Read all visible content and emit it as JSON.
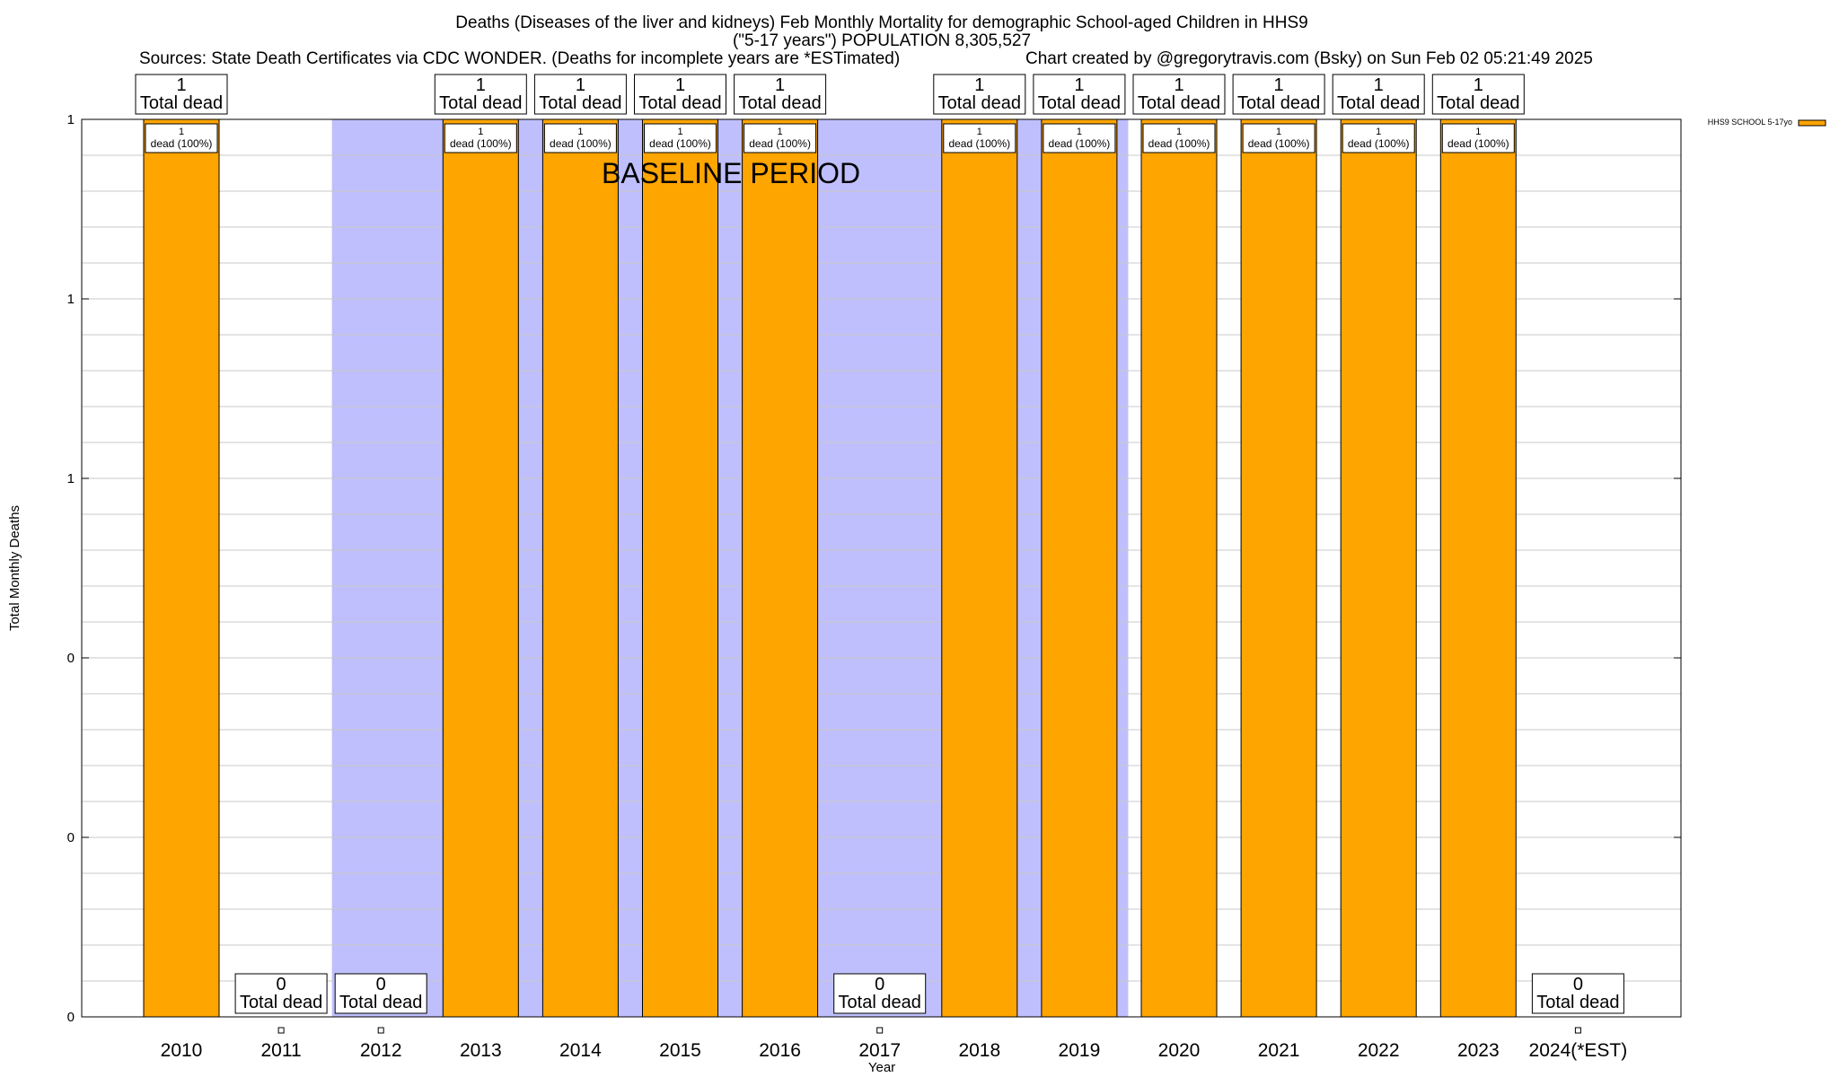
{
  "title": {
    "line1": "Deaths (Diseases of the liver and kidneys) Feb Monthly Mortality for demographic School-aged Children in HHS9",
    "line2": "(\"5-17 years\") POPULATION 8,305,527",
    "line3_left": "Sources: State Death Certificates via CDC WONDER. (Deaths for incomplete years are *ESTimated)",
    "line3_right": "Chart created by @gregorytravis.com (Bsky) on Sun Feb 02 05:21:49 2025"
  },
  "baseline_label": "BASELINE PERIOD",
  "colors": {
    "bar": "#ffa500",
    "baseline_shade": "#bfbffd",
    "grid": "#c8c8c8"
  },
  "chart_data": {
    "type": "bar",
    "title": "Deaths (Diseases of the liver and kidneys) Feb Monthly Mortality for demographic School-aged Children in HHS9",
    "xlabel": "Year",
    "ylabel": "Total Monthly Deaths",
    "categories": [
      "2010",
      "2011",
      "2012",
      "2013",
      "2014",
      "2015",
      "2016",
      "2017",
      "2018",
      "2019",
      "2020",
      "2021",
      "2022",
      "2023",
      "2024(*EST)"
    ],
    "series": [
      {
        "name": "HHS9 SCHOOL 5-17yo",
        "values": [
          1,
          0,
          0,
          1,
          1,
          1,
          1,
          0,
          1,
          1,
          1,
          1,
          1,
          1,
          0
        ]
      }
    ],
    "total_label": "Total dead",
    "inner_label": "dead (100%)",
    "ylim": [
      0,
      1
    ],
    "yticks": [
      {
        "value": 0,
        "label": "0"
      },
      {
        "value": 0.2,
        "label": "0"
      },
      {
        "value": 0.4,
        "label": "0"
      },
      {
        "value": 0.6,
        "label": "1"
      },
      {
        "value": 0.8,
        "label": "1"
      },
      {
        "value": 1.0,
        "label": "1"
      }
    ],
    "baseline_period": {
      "from": "2012",
      "to": "2019"
    },
    "legend_position": "top-right",
    "grid": true
  }
}
